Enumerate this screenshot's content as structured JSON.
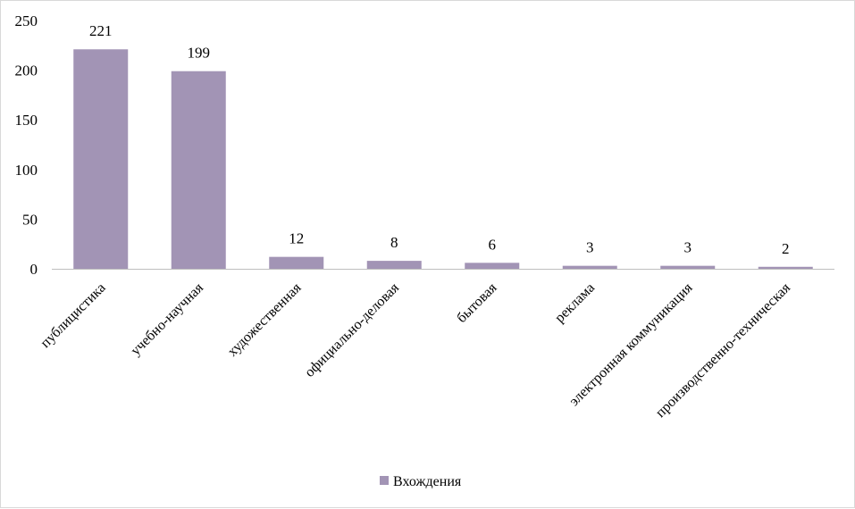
{
  "chart_data": {
    "type": "bar",
    "categories": [
      "публицистика",
      "учебно-научная",
      "художественная",
      "официально-деловая",
      "бытовая",
      "реклама",
      "электронная коммуникация",
      "производственно-техническая"
    ],
    "series": [
      {
        "name": "Вхождения",
        "values": [
          221,
          199,
          12,
          8,
          6,
          3,
          3,
          2
        ]
      }
    ],
    "data_labels": [
      "221",
      "199",
      "12",
      "8",
      "6",
      "3",
      "3",
      "2"
    ],
    "yticks": [
      0,
      50,
      100,
      150,
      200,
      250
    ],
    "ytick_labels": [
      "0",
      "50",
      "100",
      "150",
      "200",
      "250"
    ],
    "ylim": [
      0,
      250
    ],
    "grid": false,
    "legend": {
      "position": "bottom",
      "label": "Вхождения"
    },
    "colors": {
      "bar": "#a294b5",
      "axis": "#bfbfbf"
    }
  }
}
